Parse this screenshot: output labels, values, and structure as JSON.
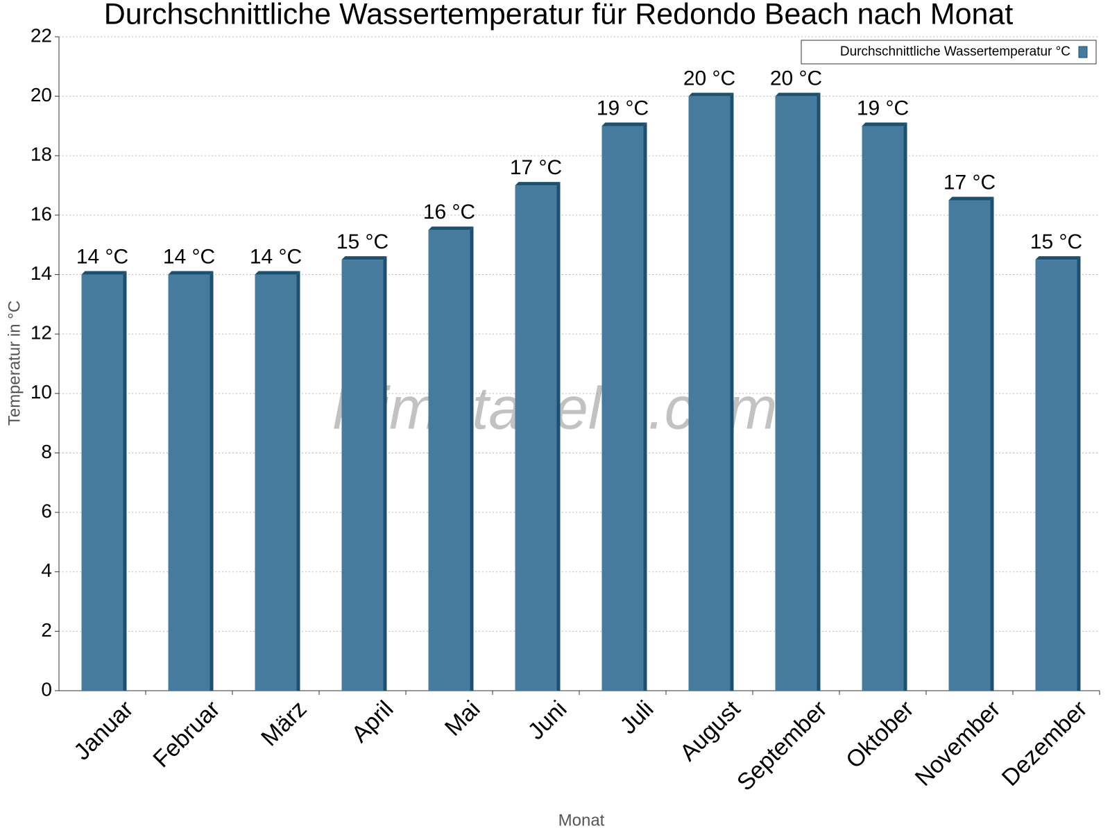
{
  "chart_data": {
    "type": "bar",
    "title": "Durchschnittliche Wassertemperatur für Redondo Beach nach Monat",
    "x_label": "Monat",
    "y_label": "Temperatur in °C",
    "watermark": "klimatabelle.com",
    "categories": [
      "Januar",
      "Februar",
      "März",
      "April",
      "Mai",
      "Juni",
      "Juli",
      "August",
      "September",
      "Oktober",
      "November",
      "Dezember"
    ],
    "series": [
      {
        "name": "Durchschnittliche Wassertemperatur °C",
        "color": "#467b9e",
        "values": [
          14,
          14,
          14,
          14.5,
          15.5,
          17,
          19,
          20,
          20,
          19,
          16.5,
          14.5
        ],
        "value_labels": [
          "14 °C",
          "14 °C",
          "14 °C",
          "15 °C",
          "16 °C",
          "17 °C",
          "19 °C",
          "20 °C",
          "20 °C",
          "19 °C",
          "17 °C",
          "15 °C"
        ]
      }
    ],
    "ylim": [
      0,
      22
    ],
    "yticks": [
      0,
      2,
      4,
      6,
      8,
      10,
      12,
      14,
      16,
      18,
      20,
      22
    ],
    "grid": true,
    "legend": "top-right"
  }
}
